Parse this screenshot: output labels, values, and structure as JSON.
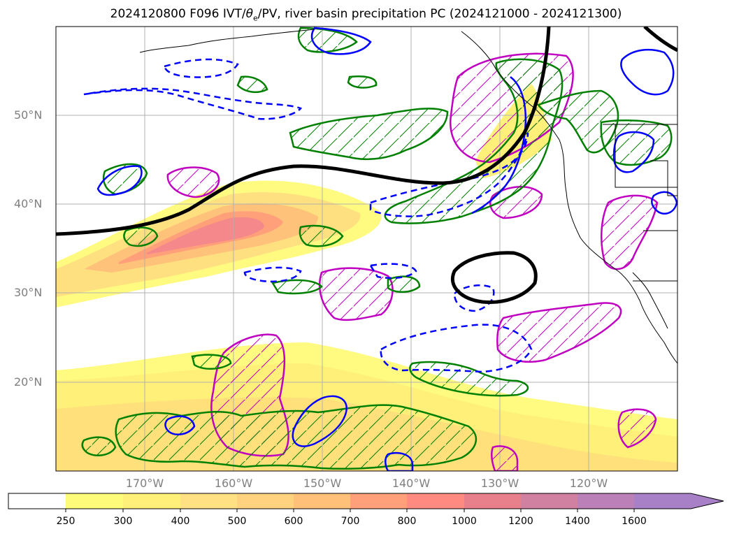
{
  "title": "2024120800 F096 IVT/θe/PV, river basin precipitation PC (2024121000 - 2024121300)",
  "title_parts": {
    "prefix": "2024120800 F096 IVT/",
    "theta": "θ",
    "theta_sub": "e",
    "suffix": "/PV, river basin precipitation PC (2024121000 - 2024121300)"
  },
  "lat_labels": [
    "50°N",
    "40°N",
    "30°N",
    "20°N"
  ],
  "lon_labels": [
    "170°W",
    "160°W",
    "150°W",
    "140°W",
    "130°W",
    "120°W"
  ],
  "colorbar": {
    "ticks": [
      "250",
      "300",
      "400",
      "500",
      "600",
      "700",
      "800",
      "1000",
      "1200",
      "1400",
      "1600"
    ],
    "colors": [
      "#ffffff",
      "#fffb7a",
      "#fff07a",
      "#ffe082",
      "#ffd27f",
      "#ffc07a",
      "#ffa07a",
      "#ff8a80",
      "#e8808c",
      "#d080a0",
      "#bb80b8",
      "#a880c8"
    ],
    "extend": "max"
  },
  "legend_colors": {
    "ivt_fill": "#ffe070",
    "theta_e_contour": "#000000",
    "pv_positive": "#0000ff",
    "precip_pc_positive": "#008000",
    "precip_pc_negative": "#c000c0"
  }
}
